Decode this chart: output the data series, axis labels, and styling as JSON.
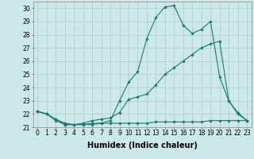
{
  "xlabel": "Humidex (Indice chaleur)",
  "bg_color": "#cce8e8",
  "grid_color": "#aacccc",
  "line_color": "#1a7a6e",
  "xlim": [
    -0.5,
    23.5
  ],
  "ylim": [
    21.0,
    30.5
  ],
  "yticks": [
    21,
    22,
    23,
    24,
    25,
    26,
    27,
    28,
    29,
    30
  ],
  "xticks": [
    0,
    1,
    2,
    3,
    4,
    5,
    6,
    7,
    8,
    9,
    10,
    11,
    12,
    13,
    14,
    15,
    16,
    17,
    18,
    19,
    20,
    21,
    22,
    23
  ],
  "series1_x": [
    0,
    1,
    2,
    3,
    4,
    5,
    6,
    7,
    8,
    9,
    10,
    11,
    12,
    13,
    14,
    15,
    16,
    17,
    18,
    19,
    20,
    21,
    22,
    23
  ],
  "series1_y": [
    22.2,
    22.0,
    21.6,
    21.2,
    21.2,
    21.2,
    21.3,
    21.3,
    21.5,
    23.0,
    24.4,
    25.2,
    27.7,
    29.3,
    30.1,
    30.2,
    28.7,
    28.1,
    28.4,
    29.0,
    24.8,
    23.0,
    22.1,
    21.5
  ],
  "series2_x": [
    0,
    1,
    2,
    3,
    4,
    5,
    6,
    7,
    8,
    9,
    10,
    11,
    12,
    13,
    14,
    15,
    16,
    17,
    18,
    19,
    20,
    21,
    22,
    23
  ],
  "series2_y": [
    22.2,
    22.0,
    21.6,
    21.3,
    21.2,
    21.3,
    21.5,
    21.6,
    21.7,
    22.1,
    23.1,
    23.3,
    23.5,
    24.2,
    25.0,
    25.5,
    26.0,
    26.5,
    27.0,
    27.3,
    27.5,
    23.0,
    22.0,
    21.5
  ],
  "series3_x": [
    0,
    1,
    2,
    3,
    4,
    5,
    6,
    7,
    8,
    9,
    10,
    11,
    12,
    13,
    14,
    15,
    16,
    17,
    18,
    19,
    20,
    21,
    22,
    23
  ],
  "series3_y": [
    22.2,
    22.0,
    21.5,
    21.2,
    21.2,
    21.2,
    21.2,
    21.3,
    21.3,
    21.3,
    21.3,
    21.3,
    21.3,
    21.4,
    21.4,
    21.4,
    21.4,
    21.4,
    21.4,
    21.5,
    21.5,
    21.5,
    21.5,
    21.5
  ],
  "marker": "D",
  "markersize": 1.8,
  "linewidth": 0.8,
  "xlabel_fontsize": 7,
  "tick_fontsize": 5.5
}
